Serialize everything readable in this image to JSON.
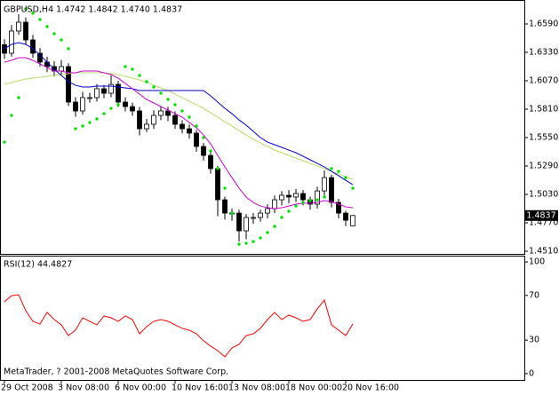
{
  "chart_data": [
    {
      "type": "candlestick",
      "title": "GBPUSD,H4  1.4742 1.4842 1.4740 1.4837",
      "open": [
        1.64,
        1.6322,
        1.6525,
        1.6606,
        1.6444,
        1.6322,
        1.6241,
        1.62,
        1.6159,
        1.62,
        1.5875,
        1.5794,
        1.5916,
        1.5916,
        1.5997,
        1.5956,
        1.6037,
        1.5875,
        1.5834,
        1.5794,
        1.5631,
        1.5672,
        1.5753,
        1.5794,
        1.5753,
        1.5672,
        1.5631,
        1.5591,
        1.5469,
        1.5387,
        1.5266,
        1.4981,
        1.4859,
        1.4859,
        1.4697,
        1.4819,
        1.4819,
        1.4859,
        1.49,
        1.4981,
        1.5022,
        1.5006,
        1.5038,
        1.4981,
        1.4941,
        1.5062,
        1.5184,
        1.4957,
        1.4859,
        1.4742
      ],
      "high": [
        1.645,
        1.658,
        1.668,
        1.665,
        1.649,
        1.637,
        1.629,
        1.625,
        1.626,
        1.623,
        1.592,
        1.597,
        1.596,
        1.604,
        1.603,
        1.612,
        1.607,
        1.592,
        1.587,
        1.583,
        1.572,
        1.58,
        1.584,
        1.583,
        1.579,
        1.571,
        1.567,
        1.562,
        1.55,
        1.542,
        1.529,
        1.501,
        1.49,
        1.489,
        1.485,
        1.486,
        1.489,
        1.494,
        1.502,
        1.506,
        1.507,
        1.508,
        1.507,
        1.501,
        1.51,
        1.525,
        1.521,
        1.499,
        1.488,
        1.4842
      ],
      "low": [
        1.627,
        1.629,
        1.649,
        1.64,
        1.628,
        1.62,
        1.615,
        1.611,
        1.612,
        1.584,
        1.574,
        1.576,
        1.587,
        1.588,
        1.591,
        1.592,
        1.583,
        1.579,
        1.575,
        1.557,
        1.56,
        1.563,
        1.571,
        1.57,
        1.563,
        1.559,
        1.554,
        1.542,
        1.534,
        1.522,
        1.483,
        1.48,
        1.479,
        1.46,
        1.462,
        1.476,
        1.478,
        1.481,
        1.486,
        1.493,
        1.495,
        1.496,
        1.493,
        1.489,
        1.49,
        1.502,
        1.491,
        1.481,
        1.474,
        1.474
      ],
      "close": [
        1.6322,
        1.6525,
        1.6606,
        1.6444,
        1.6322,
        1.6241,
        1.62,
        1.6159,
        1.62,
        1.5875,
        1.5794,
        1.5916,
        1.5916,
        1.5997,
        1.5956,
        1.6037,
        1.5875,
        1.5834,
        1.5794,
        1.5631,
        1.5672,
        1.5753,
        1.5794,
        1.5753,
        1.5672,
        1.5631,
        1.5591,
        1.5469,
        1.5387,
        1.5266,
        1.4981,
        1.4859,
        1.4859,
        1.4697,
        1.4819,
        1.4819,
        1.4859,
        1.49,
        1.4981,
        1.5022,
        1.5006,
        1.5038,
        1.4981,
        1.4941,
        1.5062,
        1.5184,
        1.4957,
        1.4859,
        1.4794,
        1.4837
      ],
      "overlays": [
        {
          "color": "#b4dc64",
          "values": [
            1.6037,
            1.6054,
            1.607,
            1.6086,
            1.6094,
            1.6102,
            1.6111,
            1.6119,
            1.6127,
            1.6135,
            1.6143,
            1.6143,
            1.6143,
            1.6143,
            1.6143,
            1.6135,
            1.6127,
            1.6111,
            1.6094,
            1.6078,
            1.6054,
            1.6029,
            1.6005,
            1.5981,
            1.5948,
            1.5916,
            1.5883,
            1.5851,
            1.5818,
            1.5778,
            1.5737,
            1.5696,
            1.5656,
            1.5615,
            1.5574,
            1.5534,
            1.5501,
            1.5469,
            1.5436,
            1.5412,
            1.5387,
            1.5363,
            1.5339,
            1.5314,
            1.529,
            1.5266,
            1.5241,
            1.5217,
            1.5192,
            1.5168
          ]
        },
        {
          "color": "#0000cd",
          "values": [
            1.6363,
            1.6403,
            1.6419,
            1.6403,
            1.6363,
            1.6306,
            1.6241,
            1.6176,
            1.6119,
            1.6062,
            1.6029,
            1.6013,
            1.6013,
            1.6021,
            1.6021,
            1.6021,
            1.6013,
            1.6005,
            1.5997,
            1.5981,
            1.5981,
            1.5981,
            1.5981,
            1.5981,
            1.5981,
            1.5981,
            1.5981,
            1.5981,
            1.5981,
            1.5932,
            1.5875,
            1.5818,
            1.5769,
            1.5712,
            1.5664,
            1.5607,
            1.555,
            1.5509,
            1.5485,
            1.5461,
            1.5436,
            1.5412,
            1.5379,
            1.5347,
            1.5314,
            1.5282,
            1.5241,
            1.5201,
            1.516,
            1.5119
          ]
        },
        {
          "color": "#cc00cc",
          "values": [
            1.6241,
            1.6257,
            1.6281,
            1.6281,
            1.6257,
            1.6224,
            1.6192,
            1.6159,
            1.6159,
            1.6143,
            1.6143,
            1.6159,
            1.6159,
            1.6159,
            1.6143,
            1.6127,
            1.6094,
            1.6046,
            1.5997,
            1.5948,
            1.5899,
            1.5867,
            1.5834,
            1.5802,
            1.5769,
            1.5737,
            1.5688,
            1.5639,
            1.5574,
            1.5493,
            1.5387,
            1.5282,
            1.5184,
            1.5087,
            1.5006,
            1.4957,
            1.4924,
            1.4908,
            1.49,
            1.4908,
            1.4924,
            1.4941,
            1.4949,
            1.4949,
            1.4957,
            1.4973,
            1.4965,
            1.4941,
            1.4916,
            1.4908
          ]
        },
        {
          "style": "dots",
          "color": "#00e000",
          "values": [
            1.5509,
            1.5753,
            1.5916,
            1.6728,
            1.6688,
            1.6631,
            1.6566,
            1.6501,
            1.6444,
            1.6363,
            1.5631,
            1.5656,
            1.5688,
            1.5721,
            1.5769,
            1.5818,
            1.5851,
            1.62,
            1.6176,
            1.6119,
            1.6062,
            1.6013,
            1.5956,
            1.5899,
            1.5851,
            1.5794,
            1.5737,
            1.5656,
            1.555,
            1.5428,
            1.5266,
            1.5087,
            1.4859,
            1.4575,
            1.4583,
            1.4599,
            1.4632,
            1.4681,
            1.4737,
            1.4819,
            1.4876,
            1.4924,
            1.4957,
            1.4973,
            1.4981,
            1.5006,
            1.5266,
            1.5241,
            1.5184,
            1.5087
          ]
        }
      ],
      "ylim": [
        1.4486,
        1.6793
      ],
      "yticks": [
        {
          "value": 1.659,
          "label": "1.6590"
        },
        {
          "value": 1.633,
          "label": "1.6330"
        },
        {
          "value": 1.607,
          "label": "1.6070"
        },
        {
          "value": 1.581,
          "label": "1.5810"
        },
        {
          "value": 1.555,
          "label": "1.5550"
        },
        {
          "value": 1.529,
          "label": "1.5290"
        },
        {
          "value": 1.503,
          "label": "1.5030"
        },
        {
          "value": 1.477,
          "label": "1.4770"
        },
        {
          "value": 1.451,
          "label": "1.4510"
        }
      ],
      "price_marker": {
        "value": 1.4837,
        "label": "1.4837"
      }
    },
    {
      "type": "line",
      "title": "RSI(12) 44.4827",
      "color": "#ff0000",
      "values": [
        64.3,
        69.8,
        70.6,
        56.3,
        46.8,
        44.4,
        54.8,
        48.4,
        43.7,
        34.1,
        38.9,
        50.0,
        46.8,
        43.7,
        51.6,
        50.0,
        46.8,
        51.6,
        48.4,
        35.7,
        42.1,
        46.8,
        48.4,
        46.8,
        43.7,
        40.5,
        38.9,
        35.7,
        29.4,
        24.6,
        20.6,
        15.1,
        23.0,
        26.2,
        34.1,
        35.7,
        40.5,
        48.4,
        54.8,
        48.4,
        52.4,
        50.0,
        46.8,
        48.4,
        57.9,
        65.9,
        43.7,
        38.9,
        34.1,
        44.4827
      ],
      "ylim": [
        -5.6,
        104.8
      ],
      "yticks": [
        100,
        70,
        30,
        0
      ],
      "xticks": [
        {
          "value": 0,
          "label": "29 Oct 2008"
        },
        {
          "value": 8,
          "label": "3 Nov 08:00"
        },
        {
          "value": 16,
          "label": "6 Nov 00:00"
        },
        {
          "value": 24,
          "label": "10 Nov 16:00"
        },
        {
          "value": 32,
          "label": "13 Nov 08:00"
        },
        {
          "value": 40,
          "label": "18 Nov 00:00"
        },
        {
          "value": 48,
          "label": "20 Nov 16:00"
        }
      ],
      "annotation": "MetaTrader, ? 2001-2008 MetaQuotes Software Corp."
    }
  ]
}
